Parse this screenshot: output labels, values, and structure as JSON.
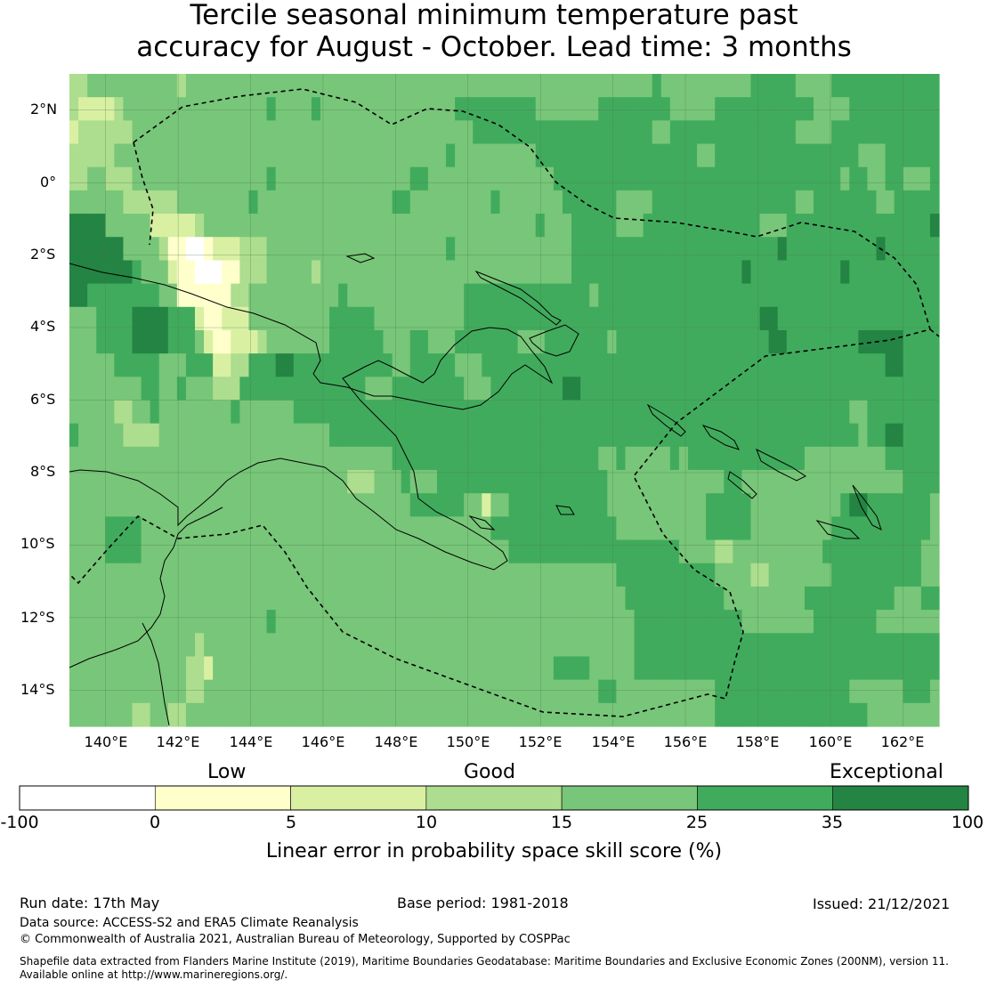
{
  "title": {
    "line1": "Tercile seasonal minimum temperature past",
    "line2": "accuracy for August - October. Lead time: 3 months"
  },
  "map": {
    "lat_ticks": [
      "2°N",
      "0°",
      "2°S",
      "4°S",
      "6°S",
      "8°S",
      "10°S",
      "12°S",
      "14°S"
    ],
    "lon_ticks": [
      "140°E",
      "142°E",
      "144°E",
      "146°E",
      "148°E",
      "150°E",
      "152°E",
      "154°E",
      "156°E",
      "158°E",
      "160°E",
      "162°E"
    ],
    "extent": {
      "lon_min": 139,
      "lon_max": 163,
      "lat_min": -15,
      "lat_max": 3
    },
    "grid_resolution_deg": 0.833,
    "colors": {
      "below_0": "#ffffff",
      "0_5": "#ffffcc",
      "5_10": "#d9f0a3",
      "10_15": "#addd8e",
      "15_25": "#78c679",
      "25_35": "#41ab5d",
      "35_100": "#238443"
    }
  },
  "colorbar": {
    "categories": [
      "Low",
      "Good",
      "Exceptional"
    ],
    "ticks": [
      "-100",
      "0",
      "5",
      "10",
      "15",
      "25",
      "35",
      "100"
    ],
    "colors": [
      "#ffffff",
      "#ffffcc",
      "#d9f0a3",
      "#addd8e",
      "#78c679",
      "#41ab5d",
      "#238443"
    ],
    "label": "Linear error in probability space skill score (%)"
  },
  "footer": {
    "run_date": "Run date: 17th May",
    "base_period": "Base period: 1981-2018",
    "issued": "Issued: 21/12/2021",
    "data_source": "Data source: ACCESS-S2 and ERA5 Climate Reanalysis",
    "copyright": "© Commonwealth of Australia 2021, Australian Bureau of Meteorology, Supported by COSPPac",
    "shapefile_line1": "Shapefile data extracted from Flanders Marine Institute (2019), Maritime Boundaries Geodatabase: Maritime Boundaries and Exclusive Economic Zones (200NM), version 11.",
    "shapefile_line2": "Available online at http://www.marineregions.org/."
  }
}
